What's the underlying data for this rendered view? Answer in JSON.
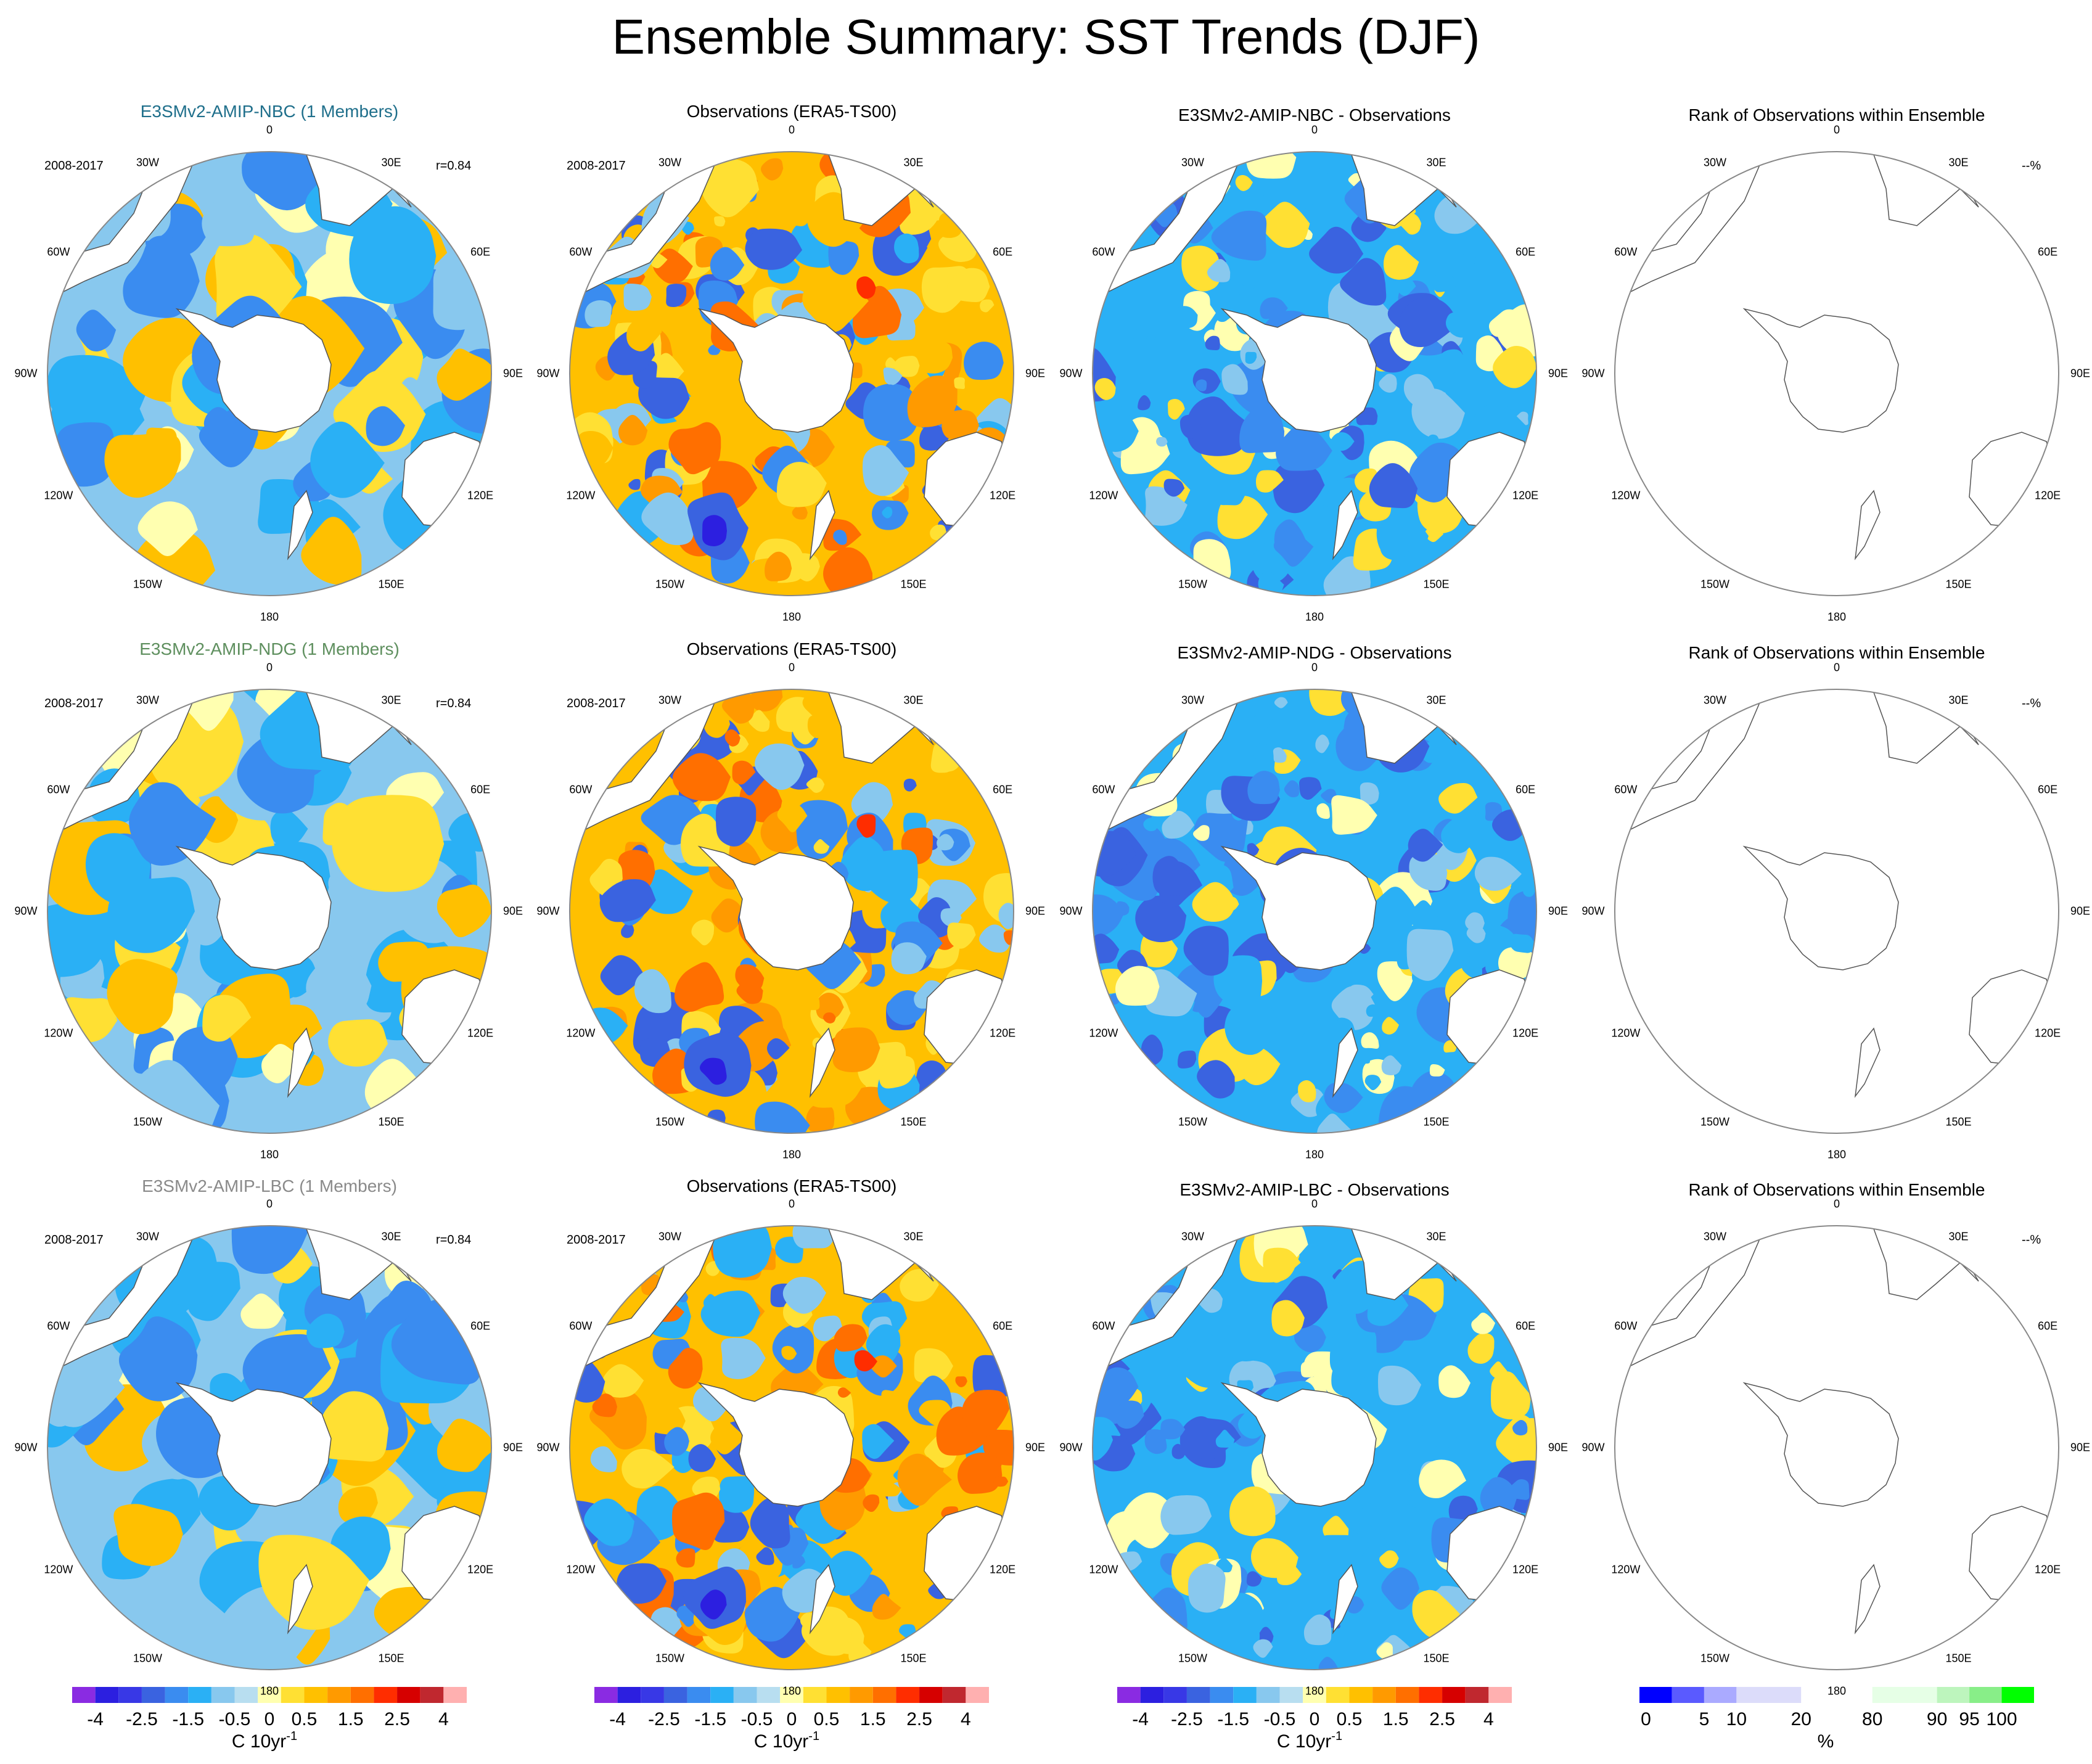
{
  "title": "Ensemble Summary: SST Trends (DJF)",
  "lon_labels": [
    "0",
    "30E",
    "60E",
    "90E",
    "120E",
    "150E",
    "180",
    "150W",
    "120W",
    "90W",
    "60W",
    "30W"
  ],
  "rows": [
    {
      "model_title": "E3SMv2-AMIP-NBC (1 Members)",
      "model_title_color": "#1f6f8b",
      "obs_title": "Observations (ERA5-TS00)",
      "diff_title": "E3SMv2-AMIP-NBC - Observations",
      "rank_title": "Rank of Observations within Ensemble",
      "period": "2008-2017",
      "corr": "r=0.84",
      "rank_pct": "--%"
    },
    {
      "model_title": "E3SMv2-AMIP-NDG (1 Members)",
      "model_title_color": "#5e8f5e",
      "obs_title": "Observations (ERA5-TS00)",
      "diff_title": "E3SMv2-AMIP-NDG - Observations",
      "rank_title": "Rank of Observations within Ensemble",
      "period": "2008-2017",
      "corr": "r=0.84",
      "rank_pct": "--%"
    },
    {
      "model_title": "E3SMv2-AMIP-LBC (1 Members)",
      "model_title_color": "#8a8a8a",
      "obs_title": "Observations (ERA5-TS00)",
      "diff_title": "E3SMv2-AMIP-LBC - Observations",
      "rank_title": "Rank of Observations within Ensemble",
      "period": "2008-2017",
      "corr": "r=0.84",
      "rank_pct": "--%"
    }
  ],
  "trend_colorbar": {
    "units": "C 10yr",
    "units_sup": "-1",
    "colors": [
      "#8a2be2",
      "#2c1fe0",
      "#3838e6",
      "#3a63e0",
      "#3a8cf0",
      "#2ab0f5",
      "#88c8ee",
      "#b8def0",
      "#ffffb0",
      "#ffe033",
      "#ffc000",
      "#ff9a00",
      "#ff6f00",
      "#ff2d00",
      "#d60000",
      "#c0282f",
      "#ffb0b0"
    ],
    "labels": [
      "-4",
      "-2.5",
      "-1.5",
      "-0.5",
      "0",
      "0.5",
      "1.5",
      "2.5",
      "4"
    ]
  },
  "rank_colorbar": {
    "units": "%",
    "colors": [
      "#0000ff",
      "#5a5aff",
      "#aaaaff",
      "#dcdcfa",
      "#ffffff",
      "#e6ffe6",
      "#bdf5bd",
      "#88ee88",
      "#00ff00"
    ],
    "labels": [
      "0",
      "5",
      "10",
      "20",
      "80",
      "90",
      "95",
      "100"
    ]
  },
  "chart_data": [
    {
      "type": "heatmap",
      "title": "E3SMv2-AMIP-NBC (1 Members)",
      "field": "SST trend",
      "period": "2008-2017",
      "stat": "r=0.84",
      "units": "C 10yr-1",
      "projection": "south polar stereographic"
    },
    {
      "type": "heatmap",
      "title": "Observations (ERA5-TS00)",
      "field": "SST trend",
      "period": "2008-2017",
      "units": "C 10yr-1"
    },
    {
      "type": "heatmap",
      "title": "E3SMv2-AMIP-NBC - Observations",
      "field": "SST trend difference",
      "units": "C 10yr-1"
    },
    {
      "type": "heatmap",
      "title": "Rank of Observations within Ensemble",
      "stat": "--%",
      "units": "%"
    },
    {
      "type": "heatmap",
      "title": "E3SMv2-AMIP-NDG (1 Members)",
      "field": "SST trend",
      "period": "2008-2017",
      "stat": "r=0.84",
      "units": "C 10yr-1"
    },
    {
      "type": "heatmap",
      "title": "Observations (ERA5-TS00)",
      "field": "SST trend",
      "period": "2008-2017",
      "units": "C 10yr-1"
    },
    {
      "type": "heatmap",
      "title": "E3SMv2-AMIP-NDG - Observations",
      "field": "SST trend difference",
      "units": "C 10yr-1"
    },
    {
      "type": "heatmap",
      "title": "Rank of Observations within Ensemble",
      "stat": "--%",
      "units": "%"
    },
    {
      "type": "heatmap",
      "title": "E3SMv2-AMIP-LBC (1 Members)",
      "field": "SST trend",
      "period": "2008-2017",
      "stat": "r=0.84",
      "units": "C 10yr-1"
    },
    {
      "type": "heatmap",
      "title": "Observations (ERA5-TS00)",
      "field": "SST trend",
      "period": "2008-2017",
      "units": "C 10yr-1"
    },
    {
      "type": "heatmap",
      "title": "E3SMv2-AMIP-LBC - Observations",
      "field": "SST trend difference",
      "units": "C 10yr-1"
    },
    {
      "type": "heatmap",
      "title": "Rank of Observations within Ensemble",
      "stat": "--%",
      "units": "%"
    }
  ]
}
